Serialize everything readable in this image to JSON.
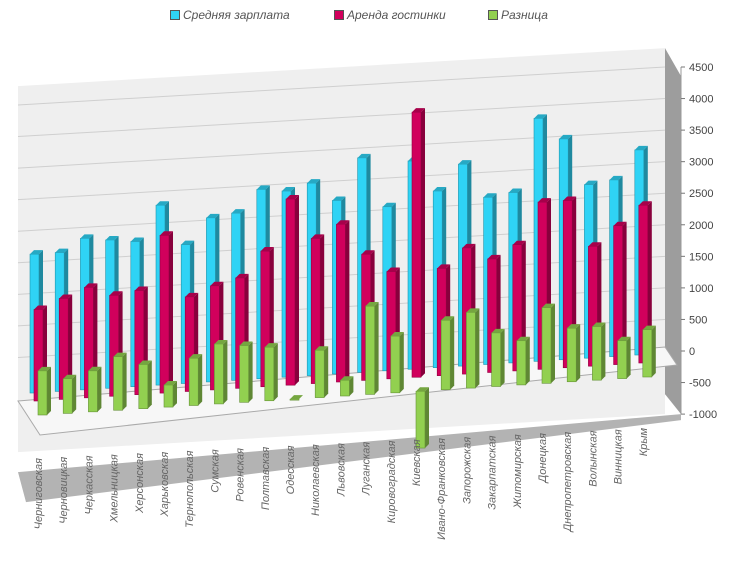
{
  "chart_data": {
    "type": "bar",
    "title": "",
    "xlabel": "",
    "ylabel": "",
    "ylim": [
      -1000,
      4500
    ],
    "yticks": [
      -1000,
      -500,
      0,
      500,
      1000,
      1500,
      2000,
      2500,
      3000,
      3500,
      4000,
      4500
    ],
    "grid": true,
    "legend_position": "top",
    "three_d": true,
    "categories": [
      "Черниговская",
      "Черновицкая",
      "Черкасская",
      "Хмельницкая",
      "Херсонская",
      "Харьковская",
      "Тернопольская",
      "Сумская",
      "Ровенская",
      "Полтавская",
      "Одесская",
      "Николаевская",
      "Львовская",
      "Луганская",
      "Кировоградская",
      "Киевская",
      "Ивано-Франковская",
      "Запорожская",
      "Закарпатская",
      "Житомирская",
      "Донецкая",
      "Днепропетровская",
      "Волынская",
      "Винницкая",
      "Крым"
    ],
    "series": [
      {
        "name": "Средняя зарплата",
        "color": "#2fd3f5",
        "values": [
          2200,
          2200,
          2400,
          2350,
          2300,
          2850,
          2200,
          2600,
          2650,
          3000,
          2950,
          3050,
          2750,
          3400,
          2600,
          3300,
          2800,
          3200,
          2650,
          2700,
          3850,
          3500,
          2750,
          2800,
          3250
        ]
      },
      {
        "name": "Аренда гостинки",
        "color": "#d1005c",
        "values": [
          1450,
          1600,
          1750,
          1600,
          1650,
          2500,
          1500,
          1650,
          1750,
          2150,
          2950,
          2300,
          2500,
          2000,
          1700,
          4200,
          1700,
          2000,
          1800,
          2000,
          2650,
          2650,
          1900,
          2200,
          2500
        ]
      },
      {
        "name": "Разница",
        "color": "#92d050",
        "values": [
          700,
          550,
          650,
          850,
          700,
          350,
          750,
          950,
          900,
          850,
          0,
          750,
          250,
          1400,
          900,
          -900,
          1100,
          1200,
          850,
          700,
          1200,
          850,
          850,
          600,
          750
        ]
      }
    ]
  }
}
